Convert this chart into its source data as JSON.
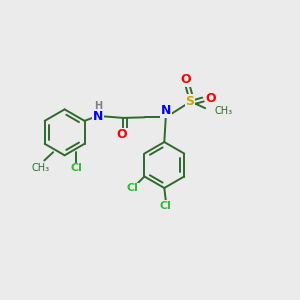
{
  "bg_color": "#ebebeb",
  "atom_colors": {
    "N": "#0000ff",
    "O": "#ff0000",
    "S": "#ccaa00",
    "Cl": "#33bb33",
    "C": "#2d6b2d",
    "H": "#808080"
  },
  "bond_color": "#2d6b2d",
  "lw": 1.4
}
